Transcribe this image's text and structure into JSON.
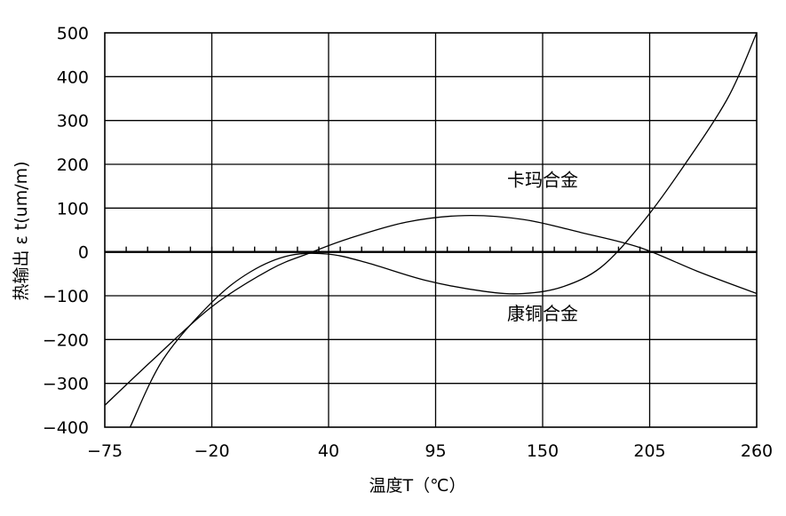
{
  "chart_data": {
    "type": "line",
    "title": "",
    "xlabel": "温度T（℃）",
    "ylabel": "热输出 ε t(um/m)",
    "xlim": [
      -75,
      260
    ],
    "ylim": [
      -400,
      500
    ],
    "x_ticks": [
      -75,
      -20,
      40,
      95,
      150,
      205,
      260
    ],
    "x_tick_labels": [
      "−75",
      "−20",
      "40",
      "95",
      "150",
      "205",
      "260"
    ],
    "y_ticks": [
      500,
      400,
      300,
      200,
      100,
      0,
      -100,
      -200,
      -300,
      -400
    ],
    "y_tick_labels": [
      "500",
      "400",
      "300",
      "200",
      "100",
      "0",
      "−100",
      "−200",
      "−300",
      "−400"
    ],
    "minor_x_ticks_on_zero_line": true,
    "grid": true,
    "annotations": [
      {
        "text": "卡玛合金",
        "x": 150,
        "y": 150
      },
      {
        "text": "康铜合金",
        "x": 150,
        "y": -155
      }
    ],
    "series": [
      {
        "x": [
          -75,
          -50,
          -20,
          10,
          30,
          50,
          80,
          110,
          140,
          170,
          200,
          230,
          260
        ],
        "y": [
          -350,
          -245,
          -125,
          -40,
          -3,
          30,
          68,
          83,
          74,
          44,
          10,
          -45,
          -95
        ]
      },
      {
        "x": [
          -62,
          -45,
          -20,
          0,
          20,
          40,
          60,
          90,
          120,
          140,
          160,
          180,
          200,
          220,
          245,
          260
        ],
        "y": [
          -400,
          -245,
          -115,
          -45,
          -8,
          -5,
          -25,
          -65,
          -90,
          -95,
          -80,
          -35,
          60,
          180,
          350,
          500
        ]
      }
    ]
  }
}
